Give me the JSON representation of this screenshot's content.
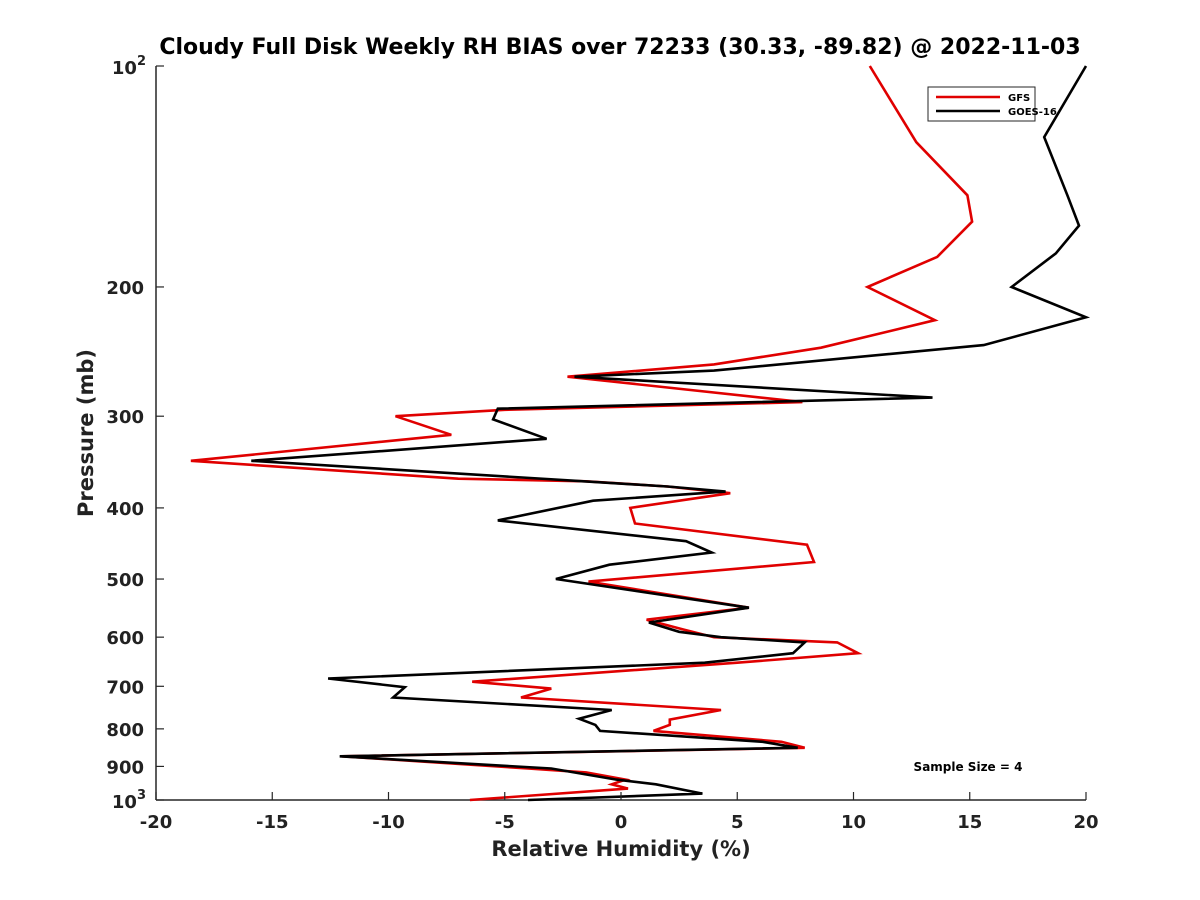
{
  "chart_data": {
    "type": "line",
    "title": "Cloudy Full Disk Weekly RH BIAS over 72233 (30.33, -89.82) @ 2022-11-03",
    "xlabel": "Relative Humidity (%)",
    "ylabel": "Pressure (mb)",
    "xlim": [
      -20,
      20
    ],
    "ylim": [
      100,
      1000
    ],
    "yscale": "log",
    "y_reversed": true,
    "x_ticks": [
      -20,
      -15,
      -10,
      -5,
      0,
      5,
      10,
      15,
      20
    ],
    "y_ticks": [
      {
        "value": 100,
        "base": "10",
        "exp": "2",
        "label": ""
      },
      {
        "value": 200,
        "label": "200"
      },
      {
        "value": 300,
        "label": "300"
      },
      {
        "value": 400,
        "label": "400"
      },
      {
        "value": 500,
        "label": "500"
      },
      {
        "value": 600,
        "label": "600"
      },
      {
        "value": 700,
        "label": "700"
      },
      {
        "value": 800,
        "label": "800"
      },
      {
        "value": 900,
        "label": "900"
      },
      {
        "value": 1000,
        "base": "10",
        "exp": "3",
        "label": ""
      }
    ],
    "legend_position": "top-right",
    "series": [
      {
        "name": "GFS",
        "color": "#e00000",
        "points": [
          [
            10.7,
            100
          ],
          [
            12.7,
            127
          ],
          [
            14.9,
            150
          ],
          [
            15.1,
            163
          ],
          [
            13.6,
            182
          ],
          [
            10.6,
            200
          ],
          [
            13.5,
            222
          ],
          [
            8.6,
            242
          ],
          [
            4.0,
            255
          ],
          [
            -2.3,
            265
          ],
          [
            7.8,
            287
          ],
          [
            -5.0,
            294
          ],
          [
            -9.7,
            300
          ],
          [
            -7.3,
            318
          ],
          [
            -18.5,
            345
          ],
          [
            -7.0,
            365
          ],
          [
            -1.5,
            368
          ],
          [
            2.0,
            374
          ],
          [
            4.7,
            382
          ],
          [
            0.4,
            400
          ],
          [
            0.6,
            420
          ],
          [
            8.0,
            449
          ],
          [
            8.3,
            474
          ],
          [
            -1.4,
            504
          ],
          [
            5.5,
            547
          ],
          [
            1.1,
            568
          ],
          [
            2.7,
            586
          ],
          [
            4.0,
            600
          ],
          [
            9.3,
            610
          ],
          [
            10.2,
            631
          ],
          [
            5.0,
            650
          ],
          [
            -6.4,
            690
          ],
          [
            -3.0,
            705
          ],
          [
            -4.3,
            725
          ],
          [
            4.3,
            754
          ],
          [
            2.1,
            777
          ],
          [
            2.1,
            790
          ],
          [
            1.4,
            805
          ],
          [
            6.9,
            833
          ],
          [
            7.9,
            849
          ],
          [
            -12.0,
            872
          ],
          [
            -4.0,
            906
          ],
          [
            -1.5,
            917
          ],
          [
            0.2,
            938
          ],
          [
            -0.4,
            952
          ],
          [
            0.3,
            965
          ],
          [
            -6.5,
            1000
          ]
        ]
      },
      {
        "name": "GOES-16",
        "color": "#000000",
        "points": [
          [
            20.0,
            100
          ],
          [
            18.2,
            125
          ],
          [
            19.2,
            150
          ],
          [
            19.7,
            165
          ],
          [
            18.7,
            180
          ],
          [
            16.8,
            200
          ],
          [
            20.0,
            220
          ],
          [
            15.6,
            240
          ],
          [
            4.0,
            260
          ],
          [
            -2.0,
            265
          ],
          [
            13.4,
            283
          ],
          [
            -5.3,
            293
          ],
          [
            -5.5,
            303
          ],
          [
            -3.2,
            322
          ],
          [
            -15.9,
            345
          ],
          [
            -1.6,
            368
          ],
          [
            2.0,
            374
          ],
          [
            4.5,
            380
          ],
          [
            -1.2,
            391
          ],
          [
            -5.3,
            416
          ],
          [
            2.8,
            444
          ],
          [
            3.9,
            460
          ],
          [
            -0.5,
            478
          ],
          [
            -2.8,
            500
          ],
          [
            5.5,
            547
          ],
          [
            1.2,
            573
          ],
          [
            2.5,
            590
          ],
          [
            4.3,
            600
          ],
          [
            7.9,
            610
          ],
          [
            7.4,
            631
          ],
          [
            3.6,
            650
          ],
          [
            -12.6,
            683
          ],
          [
            -9.3,
            702
          ],
          [
            -9.8,
            725
          ],
          [
            -0.4,
            754
          ],
          [
            -1.8,
            775
          ],
          [
            -1.1,
            790
          ],
          [
            -0.9,
            805
          ],
          [
            6.1,
            833
          ],
          [
            7.6,
            849
          ],
          [
            -12.1,
            872
          ],
          [
            -3.0,
            906
          ],
          [
            -0.2,
            938
          ],
          [
            1.5,
            952
          ],
          [
            3.5,
            980
          ],
          [
            -4.0,
            1000
          ]
        ]
      }
    ],
    "annotations": [
      "Sample Size = 4"
    ]
  }
}
